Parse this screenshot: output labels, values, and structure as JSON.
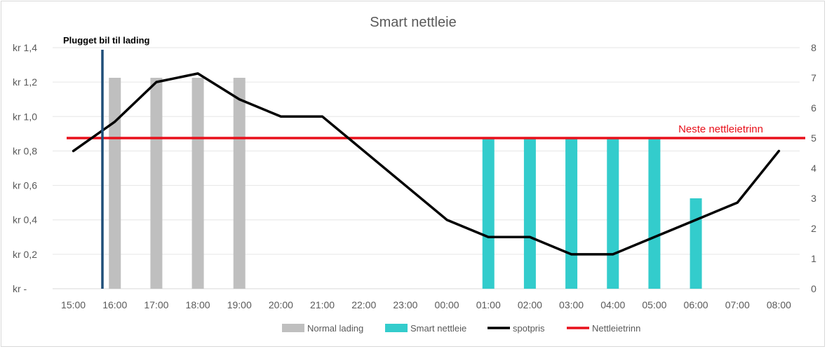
{
  "chart_data": {
    "type": "bar",
    "title": "Smart nettleie",
    "categories": [
      "15:00",
      "16:00",
      "17:00",
      "18:00",
      "19:00",
      "20:00",
      "21:00",
      "22:00",
      "23:00",
      "00:00",
      "01:00",
      "02:00",
      "03:00",
      "04:00",
      "05:00",
      "06:00",
      "07:00",
      "08:00"
    ],
    "y_left": {
      "ylim": [
        0,
        1.4
      ],
      "ticks": [
        0,
        0.2,
        0.4,
        0.6,
        0.8,
        1.0,
        1.2,
        1.4
      ],
      "tick_labels": [
        "kr -",
        "kr 0,2",
        "kr 0,4",
        "kr 0,6",
        "kr 0,8",
        "kr 1,0",
        "kr 1,2",
        "kr 1,4"
      ]
    },
    "y_right": {
      "ylim": [
        0,
        8
      ],
      "ticks": [
        0,
        1,
        2,
        3,
        4,
        5,
        6,
        7,
        8
      ],
      "tick_labels": [
        "0",
        "1",
        "2",
        "3",
        "4",
        "5",
        "6",
        "7",
        "8"
      ]
    },
    "series": [
      {
        "name": "Normal lading",
        "kind": "bar",
        "axis": "right",
        "color": "#bfbfbf",
        "values": [
          null,
          7,
          7,
          7,
          7,
          null,
          null,
          null,
          null,
          null,
          null,
          null,
          null,
          null,
          null,
          null,
          null,
          null
        ]
      },
      {
        "name": "Smart nettleie",
        "kind": "bar",
        "axis": "right",
        "color": "#33cccc",
        "values": [
          null,
          null,
          null,
          null,
          null,
          null,
          null,
          null,
          null,
          null,
          5,
          5,
          5,
          5,
          5,
          3,
          null,
          null
        ]
      },
      {
        "name": "spotpris",
        "kind": "line",
        "axis": "left",
        "color": "#000000",
        "values": [
          0.8,
          0.97,
          1.2,
          1.25,
          1.1,
          1.0,
          1.0,
          0.8,
          0.6,
          0.4,
          0.3,
          0.3,
          0.2,
          0.2,
          0.3,
          0.4,
          0.5,
          0.8
        ]
      },
      {
        "name": "Nettleietrinn",
        "kind": "hline",
        "axis": "right",
        "color": "#e8101b",
        "value": 5
      }
    ],
    "annotations": [
      {
        "text": "Plugget bil til lading",
        "kind": "vline",
        "x_category": "16:00",
        "offset": -0.3,
        "color": "#1f4e79"
      },
      {
        "text": "Neste nettleietrinn",
        "color": "#e8101b"
      }
    ],
    "legend_position": "bottom",
    "grid": true
  }
}
